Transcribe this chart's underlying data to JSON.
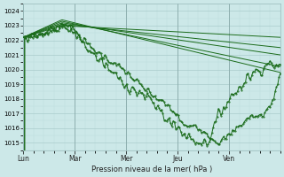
{
  "xlabel": "Pression niveau de la mer( hPa )",
  "bg_color": "#cce8e8",
  "grid_major_color": "#aacccc",
  "grid_minor_color": "#bbdddd",
  "line_color": "#1a6b1a",
  "ylim": [
    1014.5,
    1024.5
  ],
  "xlim": [
    0,
    5
  ],
  "day_labels": [
    "Lun",
    "Mar",
    "Mer",
    "Jeu",
    "Ven"
  ],
  "day_positions": [
    0,
    1,
    2,
    3,
    4
  ],
  "yticks": [
    1015,
    1016,
    1017,
    1018,
    1019,
    1020,
    1021,
    1022,
    1023,
    1024
  ],
  "straight_lines": [
    {
      "x0": 0.0,
      "y0": 1022.2,
      "x1": 0.75,
      "y1": 1023.0,
      "x2": 5.0,
      "y2": 1022.2
    },
    {
      "x0": 0.0,
      "y0": 1022.2,
      "x1": 0.75,
      "y1": 1023.1,
      "x2": 5.0,
      "y2": 1021.5
    },
    {
      "x0": 0.0,
      "y0": 1022.2,
      "x1": 0.75,
      "y1": 1023.2,
      "x2": 5.0,
      "y2": 1021.0
    },
    {
      "x0": 0.0,
      "y0": 1022.2,
      "x1": 0.75,
      "y1": 1023.3,
      "x2": 5.0,
      "y2": 1020.2
    },
    {
      "x0": 0.0,
      "y0": 1022.2,
      "x1": 0.75,
      "y1": 1023.4,
      "x2": 5.0,
      "y2": 1019.8
    }
  ],
  "noisy_line1": {
    "pts_x": [
      0.0,
      0.5,
      0.75,
      1.0,
      1.3,
      1.6,
      2.0,
      2.3,
      2.6,
      2.8,
      3.0,
      3.1,
      3.2,
      3.3,
      3.5,
      3.7,
      3.8,
      4.0,
      4.2,
      4.4,
      4.6,
      4.8,
      5.0
    ],
    "pts_y": [
      1022.2,
      1022.5,
      1023.0,
      1022.6,
      1021.5,
      1020.8,
      1019.8,
      1018.8,
      1018.0,
      1017.5,
      1016.8,
      1016.2,
      1016.0,
      1016.3,
      1015.8,
      1015.2,
      1015.0,
      1015.5,
      1016.2,
      1016.8,
      1016.8,
      1017.5,
      1019.8
    ],
    "noise": 0.15
  },
  "noisy_line2": {
    "pts_x": [
      0.0,
      0.3,
      0.6,
      0.75,
      1.0,
      1.3,
      1.6,
      1.9,
      2.2,
      2.5,
      2.7,
      2.9,
      3.0,
      3.15,
      3.3,
      3.5,
      3.6,
      3.75,
      3.85,
      4.0,
      4.2,
      4.35,
      4.5,
      4.65,
      4.8,
      5.0
    ],
    "pts_y": [
      1022.2,
      1022.4,
      1022.8,
      1023.1,
      1022.5,
      1021.2,
      1020.2,
      1019.2,
      1018.5,
      1017.8,
      1017.0,
      1016.2,
      1016.0,
      1015.5,
      1015.2,
      1015.0,
      1015.2,
      1016.5,
      1017.3,
      1018.0,
      1018.8,
      1019.5,
      1019.8,
      1020.2,
      1020.5,
      1020.0
    ],
    "noise": 0.25
  }
}
